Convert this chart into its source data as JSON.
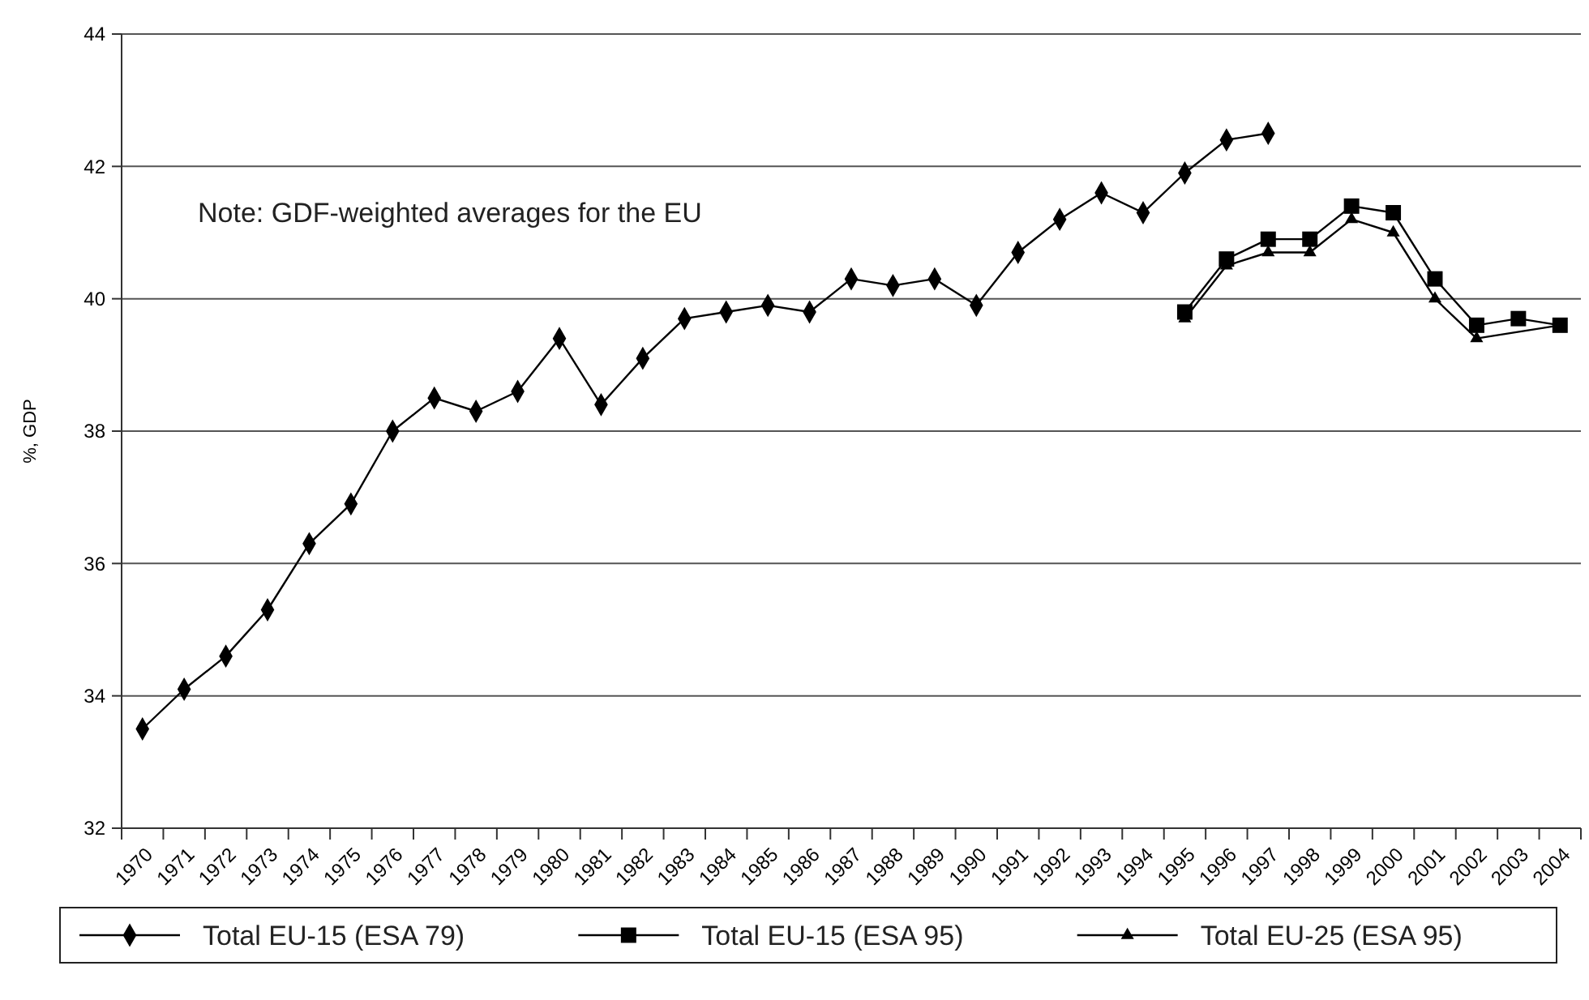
{
  "chart_data": {
    "type": "line",
    "ylabel": "%, GDP",
    "annotations": [
      "Note: GDF-weighted averages for the EU"
    ],
    "categories": [
      "1970",
      "1971",
      "1972",
      "1973",
      "1974",
      "1975",
      "1976",
      "1977",
      "1978",
      "1979",
      "1980",
      "1981",
      "1982",
      "1983",
      "1984",
      "1985",
      "1986",
      "1987",
      "1988",
      "1989",
      "1990",
      "1991",
      "1992",
      "1993",
      "1994",
      "1995",
      "1996",
      "1997",
      "1998",
      "1999",
      "2000",
      "2001",
      "2002",
      "2003",
      "2004"
    ],
    "series": [
      {
        "name": "Total EU-15 (ESA 79)",
        "color": "#000000",
        "marker": "diamond",
        "values": [
          33.5,
          34.1,
          34.6,
          35.3,
          36.3,
          36.9,
          38.0,
          38.5,
          38.3,
          38.6,
          39.4,
          38.4,
          39.1,
          39.7,
          39.8,
          39.9,
          39.8,
          40.3,
          40.2,
          40.3,
          39.9,
          40.7,
          41.2,
          41.6,
          41.3,
          41.9,
          42.4,
          42.5,
          null,
          null,
          null,
          null,
          null,
          null,
          null
        ]
      },
      {
        "name": "Total EU-15 (ESA 95)",
        "color": "#000000",
        "marker": "square",
        "values": [
          null,
          null,
          null,
          null,
          null,
          null,
          null,
          null,
          null,
          null,
          null,
          null,
          null,
          null,
          null,
          null,
          null,
          null,
          null,
          null,
          null,
          null,
          null,
          null,
          null,
          39.8,
          40.6,
          40.9,
          40.9,
          41.4,
          41.3,
          40.3,
          39.6,
          39.7,
          39.6
        ]
      },
      {
        "name": "Total EU-25 (ESA 95)",
        "color": "#000000",
        "marker": "triangle",
        "values": [
          null,
          null,
          null,
          null,
          null,
          null,
          null,
          null,
          null,
          null,
          null,
          null,
          null,
          null,
          null,
          null,
          null,
          null,
          null,
          null,
          null,
          null,
          null,
          null,
          null,
          39.7,
          40.5,
          40.7,
          40.7,
          41.2,
          41.0,
          40.0,
          39.4,
          null,
          39.6
        ]
      }
    ],
    "ylim": [
      32,
      44
    ],
    "yticks": [
      32,
      34,
      36,
      38,
      40,
      42,
      44
    ],
    "grid": "y",
    "legend": "bottom",
    "line_style": "solid"
  }
}
